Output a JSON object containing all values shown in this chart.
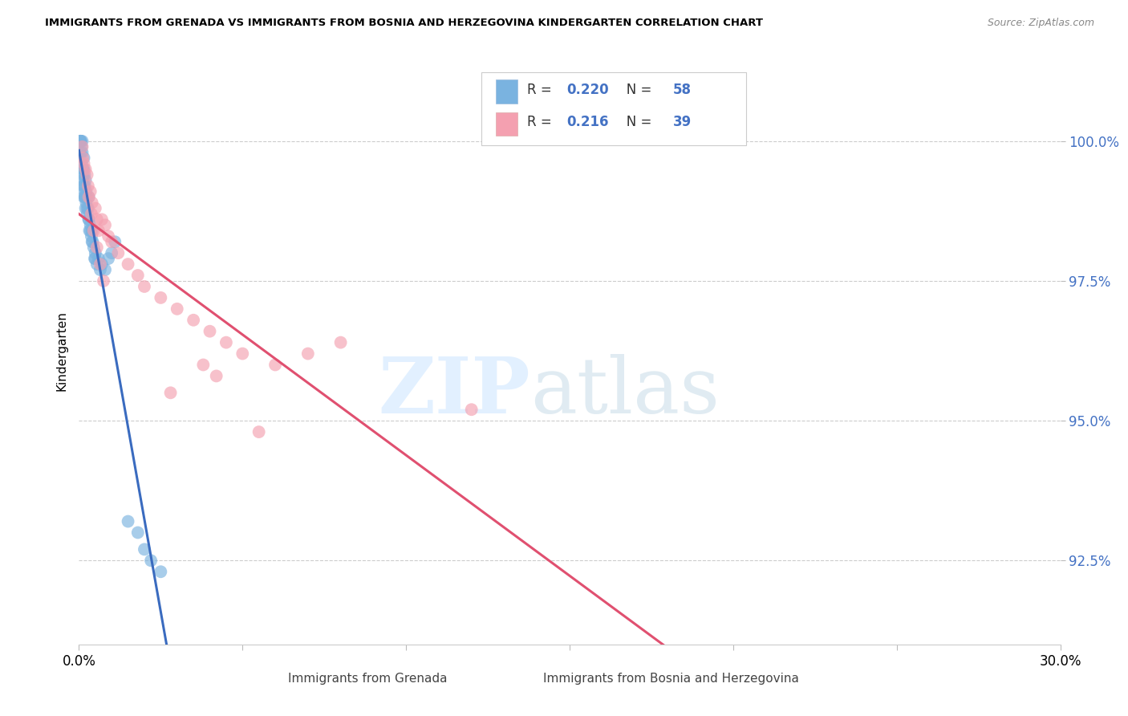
{
  "title": "IMMIGRANTS FROM GRENADA VS IMMIGRANTS FROM BOSNIA AND HERZEGOVINA KINDERGARTEN CORRELATION CHART",
  "source": "Source: ZipAtlas.com",
  "ylabel": "Kindergarten",
  "xlim": [
    0.0,
    30.0
  ],
  "ylim": [
    91.0,
    101.5
  ],
  "yticks": [
    92.5,
    95.0,
    97.5,
    100.0
  ],
  "ytick_labels": [
    "92.5%",
    "95.0%",
    "97.5%",
    "100.0%"
  ],
  "xtick_positions": [
    0,
    5,
    10,
    15,
    20,
    25,
    30
  ],
  "legend_r1": "0.220",
  "legend_n1": "58",
  "legend_r2": "0.216",
  "legend_n2": "39",
  "blue_color": "#7ab3e0",
  "pink_color": "#f4a0b0",
  "blue_line_color": "#3a6bbf",
  "pink_line_color": "#e05070",
  "grenada_x": [
    0.05,
    0.05,
    0.05,
    0.05,
    0.05,
    0.08,
    0.1,
    0.1,
    0.12,
    0.12,
    0.13,
    0.15,
    0.15,
    0.15,
    0.17,
    0.18,
    0.18,
    0.2,
    0.2,
    0.2,
    0.22,
    0.22,
    0.25,
    0.25,
    0.28,
    0.3,
    0.3,
    0.32,
    0.35,
    0.38,
    0.4,
    0.42,
    0.45,
    0.48,
    0.5,
    0.55,
    0.6,
    0.65,
    0.7,
    0.8,
    0.9,
    1.0,
    1.1,
    1.5,
    1.8,
    2.0,
    2.2,
    2.5,
    0.08,
    0.12,
    0.15,
    0.18,
    0.2,
    0.25,
    0.3,
    0.35,
    0.4,
    0.5
  ],
  "grenada_y": [
    100.0,
    100.0,
    100.0,
    100.0,
    99.8,
    99.9,
    100.0,
    99.8,
    99.5,
    99.3,
    99.2,
    99.7,
    99.5,
    99.0,
    99.4,
    99.2,
    99.0,
    99.3,
    99.0,
    98.8,
    99.1,
    98.9,
    99.0,
    98.7,
    98.8,
    99.0,
    98.6,
    98.4,
    98.5,
    98.3,
    98.4,
    98.2,
    98.1,
    97.9,
    98.0,
    97.8,
    97.9,
    97.7,
    97.8,
    97.7,
    97.9,
    98.0,
    98.2,
    93.2,
    93.0,
    92.7,
    92.5,
    92.3,
    99.6,
    99.4,
    99.2,
    99.1,
    99.0,
    98.8,
    98.6,
    98.4,
    98.2,
    97.9
  ],
  "bosnia_x": [
    0.1,
    0.12,
    0.15,
    0.2,
    0.25,
    0.28,
    0.3,
    0.35,
    0.4,
    0.5,
    0.55,
    0.6,
    0.7,
    0.8,
    0.9,
    1.0,
    1.2,
    1.5,
    1.8,
    2.0,
    2.5,
    3.0,
    3.5,
    4.0,
    4.5,
    5.0,
    6.0,
    7.0,
    8.0,
    0.38,
    0.45,
    0.55,
    0.65,
    0.75,
    3.8,
    12.0,
    4.2,
    2.8,
    5.5
  ],
  "bosnia_y": [
    99.9,
    99.7,
    99.6,
    99.5,
    99.4,
    99.2,
    99.0,
    99.1,
    98.9,
    98.8,
    98.6,
    98.4,
    98.6,
    98.5,
    98.3,
    98.2,
    98.0,
    97.8,
    97.6,
    97.4,
    97.2,
    97.0,
    96.8,
    96.6,
    96.4,
    96.2,
    96.0,
    96.2,
    96.4,
    98.7,
    98.4,
    98.1,
    97.8,
    97.5,
    96.0,
    95.2,
    95.8,
    95.5,
    94.8
  ]
}
